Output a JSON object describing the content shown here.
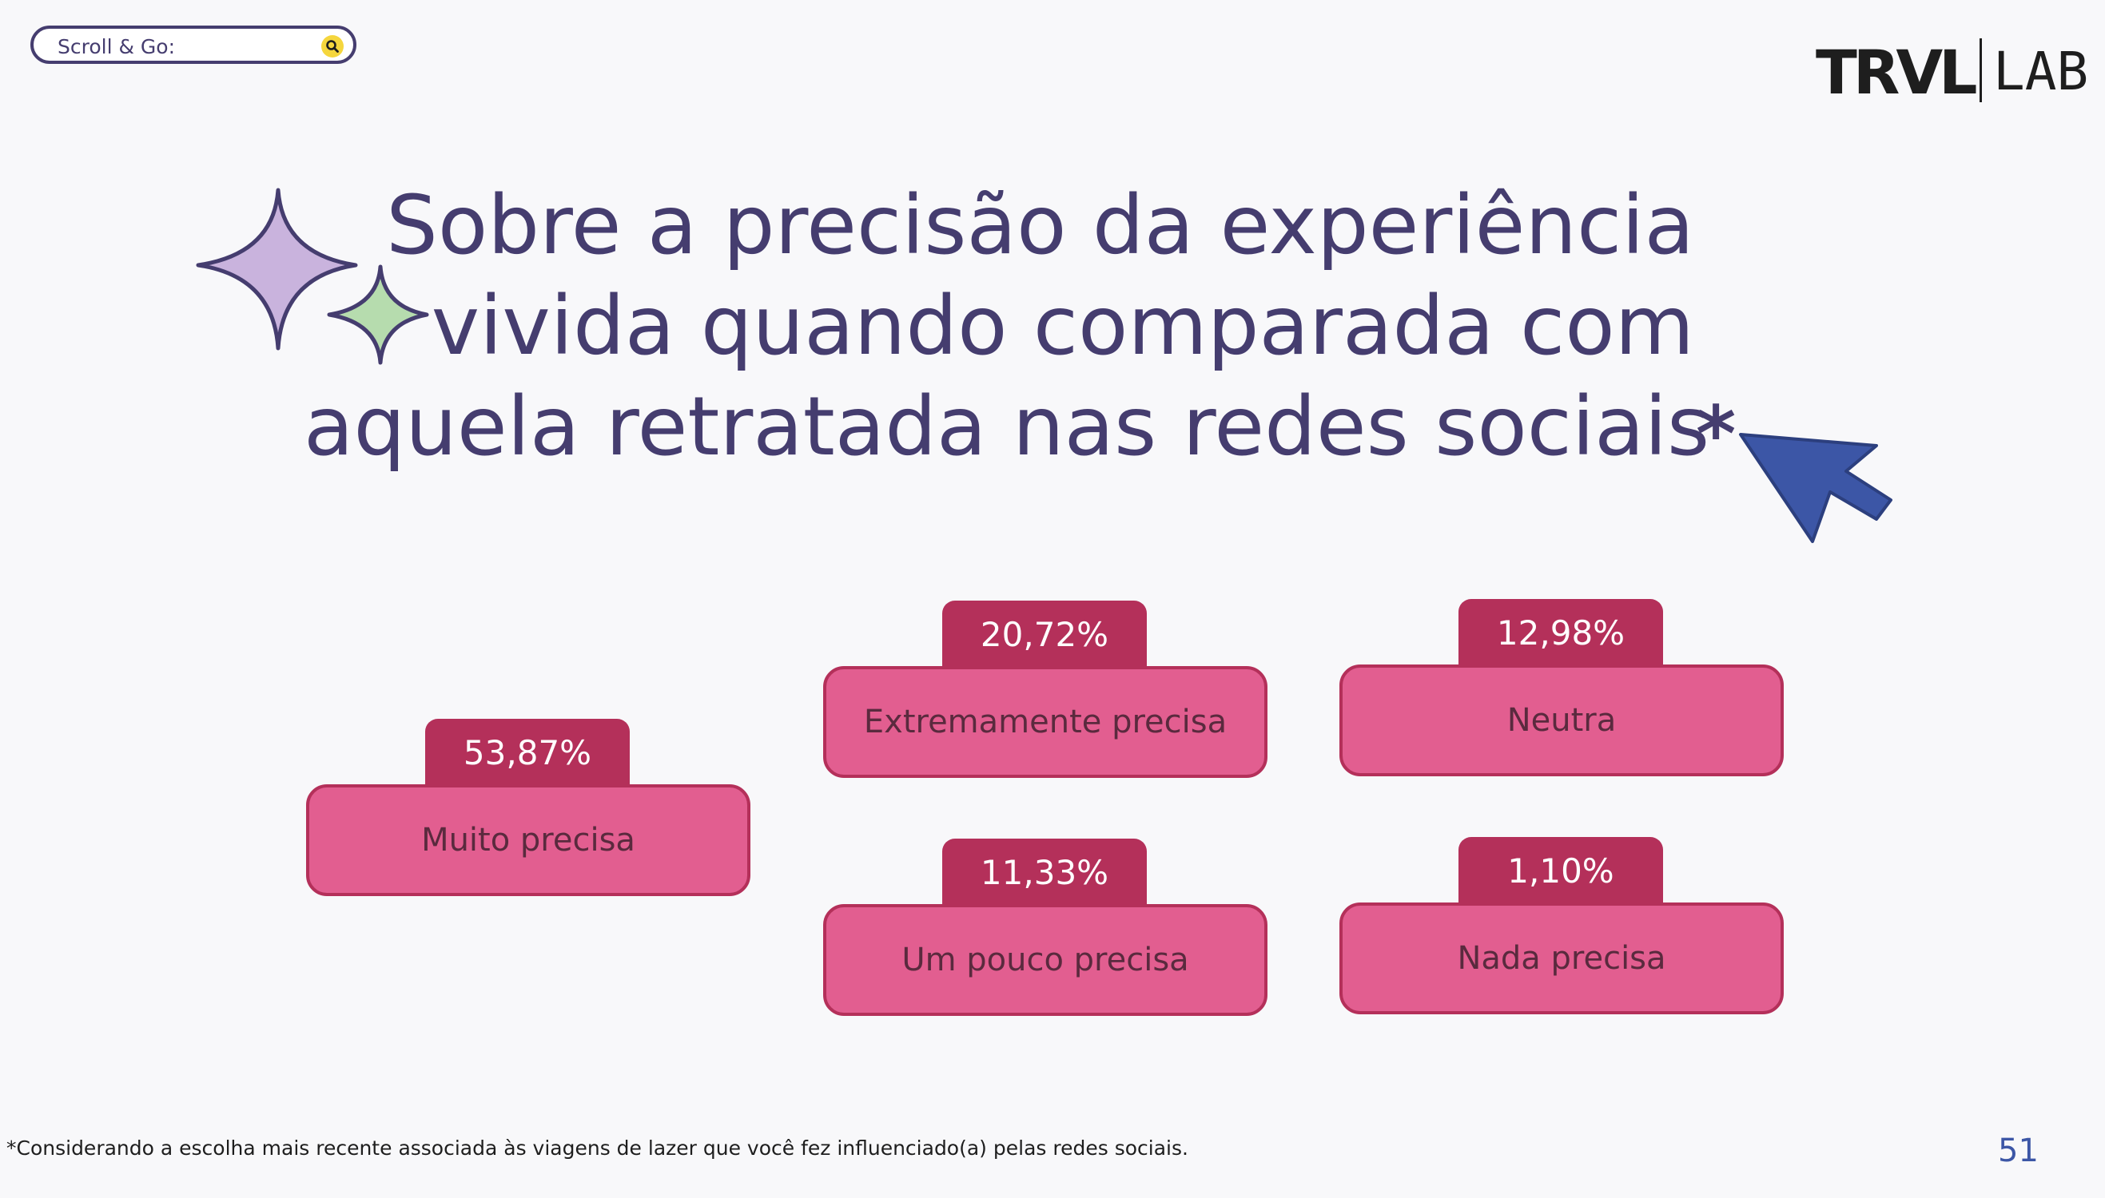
{
  "search": {
    "label": "Scroll & Go:",
    "icon": "search-icon"
  },
  "logo": {
    "brand": "TRVL",
    "sub": "LAB"
  },
  "title": {
    "lines": [
      "Sobre a precisão da experiência",
      "vivida quando comparada com",
      "aquela retratada nas redes sociais"
    ],
    "asterisk": "*"
  },
  "results": [
    {
      "percent": "53,87%",
      "label": "Muito precisa"
    },
    {
      "percent": "20,72%",
      "label": "Extremamente precisa"
    },
    {
      "percent": "12,98%",
      "label": "Neutra"
    },
    {
      "percent": "11,33%",
      "label": "Um pouco precisa"
    },
    {
      "percent": "1,10%",
      "label": "Nada precisa"
    }
  ],
  "footnote": "*Considerando a escolha mais recente associada às viagens de lazer que você fez influenciado(a) pelas redes sociais.",
  "page_number": "51",
  "colors": {
    "title": "#453d6f",
    "tab": "#b4305a",
    "card": "#e25e90",
    "cursor": "#3c56a6",
    "sparkle_large": "#c9b3dd",
    "sparkle_small": "#b6dcae"
  }
}
